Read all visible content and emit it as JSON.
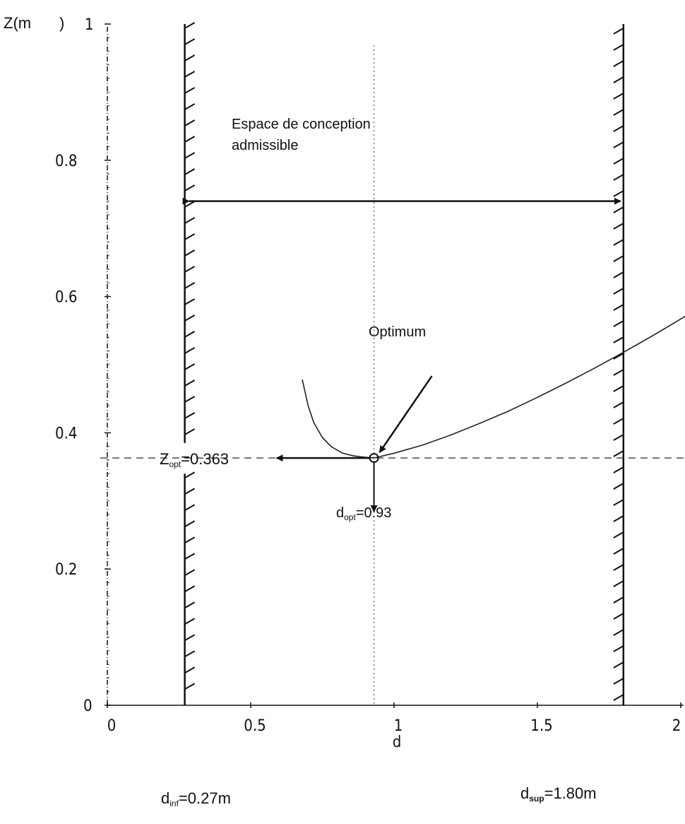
{
  "chart_data": {
    "type": "line",
    "title": "",
    "xlabel": "d",
    "ylabel": "Z(m",
    "xlim": [
      0,
      2
    ],
    "ylim": [
      0,
      1
    ],
    "x_ticks": [
      "0",
      "0.5",
      "1",
      "1.5",
      "2"
    ],
    "y_ticks": [
      "0",
      "0.2",
      "0.4",
      "0.6",
      "0.8",
      "1"
    ],
    "grid": false,
    "series": [
      {
        "x": [
          0.68,
          0.7,
          0.72,
          0.75,
          0.78,
          0.82,
          0.86,
          0.9,
          0.93,
          1.0,
          1.1,
          1.2,
          1.3,
          1.4,
          1.5,
          1.6,
          1.7,
          1.8,
          1.9,
          2.0,
          2.12
        ],
        "y": [
          0.478,
          0.44,
          0.415,
          0.393,
          0.38,
          0.37,
          0.366,
          0.364,
          0.363,
          0.37,
          0.382,
          0.397,
          0.414,
          0.432,
          0.452,
          0.473,
          0.495,
          0.518,
          0.542,
          0.567,
          0.598
        ]
      }
    ],
    "constraints": [
      {
        "x": 0.27,
        "y_segments": [
          [
            0,
            0.34
          ],
          [
            0.385,
            1
          ]
        ]
      },
      {
        "x": 1.8,
        "y_segments": [
          [
            0,
            1
          ]
        ]
      }
    ],
    "optimum": {
      "x": 0.93,
      "y": 0.363
    },
    "admissible_range": {
      "from": 0.27,
      "to": 1.8,
      "y": 0.74
    }
  },
  "annotations": {
    "admissible_line1": "Espace de conception",
    "admissible_line2": "admissible",
    "optimum_label": "Optimum",
    "zopt_main": "Z",
    "zopt_sub": "opt",
    "zopt_value": "=0.363",
    "dopt_main": "d",
    "dopt_sub": "opt",
    "dopt_value": "=0.93",
    "dinf_main": "d",
    "dinf_sub": "inf",
    "dinf_value": "=0.27m",
    "dsup_main": "d",
    "dsup_sub": "sup",
    "dsup_value": "=1.80m"
  },
  "colors": {
    "ink": "#111111",
    "curve": "#222222"
  }
}
